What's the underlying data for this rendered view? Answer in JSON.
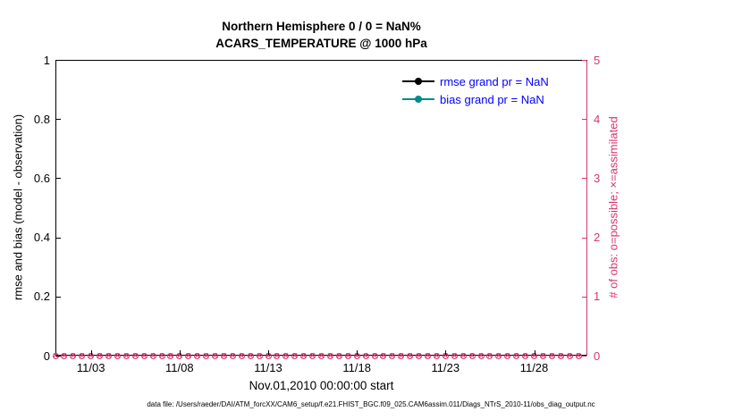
{
  "figure": {
    "title_line1": "Northern Hemisphere 0 / 0 = NaN%",
    "title_line2": "ACARS_TEMPERATURE @ 1000 hPa",
    "caption": "data file: /Users/raeder/DAI/ATM_forcXX/CAM6_setup/f.e21.FHIST_BGC.f09_025.CAM6assim.011/Diags_NTrS_2010-11/obs_diag_output.nc"
  },
  "chart_data": {
    "type": "line",
    "title": "Northern Hemisphere 0 / 0 = NaN% — ACARS_TEMPERATURE @ 1000 hPa",
    "xlabel": "Nov.01,2010 00:00:00 start",
    "ylabel_left": "rmse and bias (model - observation)",
    "ylabel_right": "# of obs: o=possible; ×=assimilated",
    "ylim_left": [
      0,
      1
    ],
    "ylim_right": [
      0,
      5
    ],
    "x_range_days": [
      0,
      30
    ],
    "grid": false,
    "yticks_left": [
      {
        "value": 0,
        "label": "0"
      },
      {
        "value": 0.2,
        "label": "0.2"
      },
      {
        "value": 0.4,
        "label": "0.4"
      },
      {
        "value": 0.6,
        "label": "0.6"
      },
      {
        "value": 0.8,
        "label": "0.8"
      },
      {
        "value": 1,
        "label": "1"
      }
    ],
    "yticks_right": [
      {
        "value": 0,
        "label": "0"
      },
      {
        "value": 1,
        "label": "1"
      },
      {
        "value": 2,
        "label": "2"
      },
      {
        "value": 3,
        "label": "3"
      },
      {
        "value": 4,
        "label": "4"
      },
      {
        "value": 5,
        "label": "5"
      }
    ],
    "xticks": [
      {
        "day": 2,
        "label": "11/03"
      },
      {
        "day": 7,
        "label": "11/08"
      },
      {
        "day": 12,
        "label": "11/13"
      },
      {
        "day": 17,
        "label": "11/18"
      },
      {
        "day": 22,
        "label": "11/23"
      },
      {
        "day": 27,
        "label": "11/28"
      }
    ],
    "series": [
      {
        "name": "rmse grand pr = NaN",
        "color": "#000000",
        "grand_mean": "NaN",
        "values": []
      },
      {
        "name": "bias grand pr = NaN",
        "color": "#008b8b",
        "grand_mean": "NaN",
        "values": []
      }
    ],
    "legend": {
      "text_color": "#0000ff",
      "position": "top-right-inside"
    },
    "obs": {
      "marker_color": "#d6356c",
      "n_markers": 60,
      "interval_days": 0.5,
      "possible_per_time": 0,
      "assimilated_per_time": 0,
      "value_right_axis": 0
    }
  }
}
